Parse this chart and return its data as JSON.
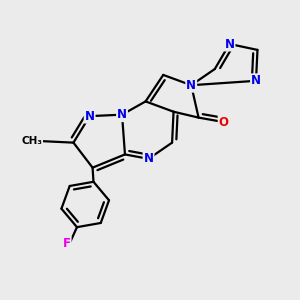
{
  "background_color": "#ebebeb",
  "atom_colors": {
    "N": "#0000ee",
    "O": "#ee0000",
    "F": "#ee00ee",
    "C": "#000000"
  },
  "bond_color": "#000000",
  "bond_width": 1.6,
  "font_size_atoms": 8.5,
  "figsize": [
    3.0,
    3.0
  ],
  "dpi": 100
}
